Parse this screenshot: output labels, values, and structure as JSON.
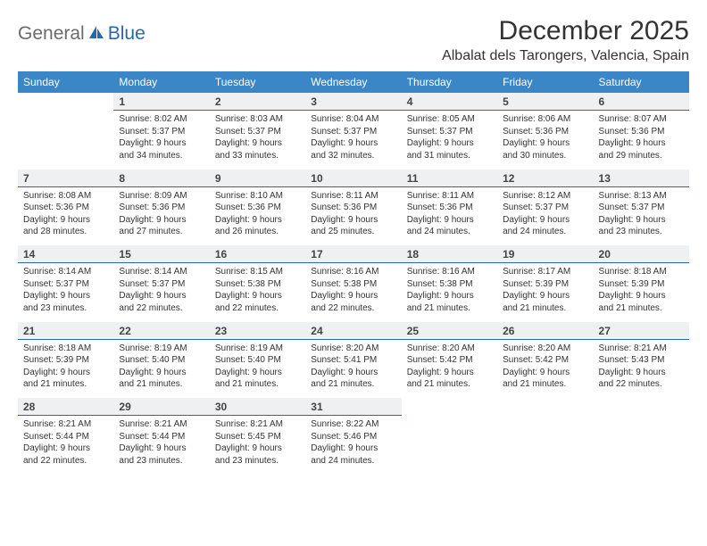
{
  "brand": {
    "part1": "General",
    "part2": "Blue"
  },
  "title": "December 2025",
  "location": "Albalat dels Tarongers, Valencia, Spain",
  "colors": {
    "header_bg": "#3b86c6",
    "header_text": "#ffffff",
    "daynum_bg": "#eef0f2",
    "daynum_border": "#2968a8",
    "logo_gray": "#6b6b6b",
    "logo_blue": "#2968a8",
    "page_bg": "#ffffff"
  },
  "weekdays": [
    "Sunday",
    "Monday",
    "Tuesday",
    "Wednesday",
    "Thursday",
    "Friday",
    "Saturday"
  ],
  "weeks": [
    {
      "nums": [
        "",
        "1",
        "2",
        "3",
        "4",
        "5",
        "6"
      ],
      "info": [
        {},
        {
          "sunrise": "Sunrise: 8:02 AM",
          "sunset": "Sunset: 5:37 PM",
          "dl1": "Daylight: 9 hours",
          "dl2": "and 34 minutes."
        },
        {
          "sunrise": "Sunrise: 8:03 AM",
          "sunset": "Sunset: 5:37 PM",
          "dl1": "Daylight: 9 hours",
          "dl2": "and 33 minutes."
        },
        {
          "sunrise": "Sunrise: 8:04 AM",
          "sunset": "Sunset: 5:37 PM",
          "dl1": "Daylight: 9 hours",
          "dl2": "and 32 minutes."
        },
        {
          "sunrise": "Sunrise: 8:05 AM",
          "sunset": "Sunset: 5:37 PM",
          "dl1": "Daylight: 9 hours",
          "dl2": "and 31 minutes."
        },
        {
          "sunrise": "Sunrise: 8:06 AM",
          "sunset": "Sunset: 5:36 PM",
          "dl1": "Daylight: 9 hours",
          "dl2": "and 30 minutes."
        },
        {
          "sunrise": "Sunrise: 8:07 AM",
          "sunset": "Sunset: 5:36 PM",
          "dl1": "Daylight: 9 hours",
          "dl2": "and 29 minutes."
        }
      ]
    },
    {
      "nums": [
        "7",
        "8",
        "9",
        "10",
        "11",
        "12",
        "13"
      ],
      "info": [
        {
          "sunrise": "Sunrise: 8:08 AM",
          "sunset": "Sunset: 5:36 PM",
          "dl1": "Daylight: 9 hours",
          "dl2": "and 28 minutes."
        },
        {
          "sunrise": "Sunrise: 8:09 AM",
          "sunset": "Sunset: 5:36 PM",
          "dl1": "Daylight: 9 hours",
          "dl2": "and 27 minutes."
        },
        {
          "sunrise": "Sunrise: 8:10 AM",
          "sunset": "Sunset: 5:36 PM",
          "dl1": "Daylight: 9 hours",
          "dl2": "and 26 minutes."
        },
        {
          "sunrise": "Sunrise: 8:11 AM",
          "sunset": "Sunset: 5:36 PM",
          "dl1": "Daylight: 9 hours",
          "dl2": "and 25 minutes."
        },
        {
          "sunrise": "Sunrise: 8:11 AM",
          "sunset": "Sunset: 5:36 PM",
          "dl1": "Daylight: 9 hours",
          "dl2": "and 24 minutes."
        },
        {
          "sunrise": "Sunrise: 8:12 AM",
          "sunset": "Sunset: 5:37 PM",
          "dl1": "Daylight: 9 hours",
          "dl2": "and 24 minutes."
        },
        {
          "sunrise": "Sunrise: 8:13 AM",
          "sunset": "Sunset: 5:37 PM",
          "dl1": "Daylight: 9 hours",
          "dl2": "and 23 minutes."
        }
      ]
    },
    {
      "nums": [
        "14",
        "15",
        "16",
        "17",
        "18",
        "19",
        "20"
      ],
      "info": [
        {
          "sunrise": "Sunrise: 8:14 AM",
          "sunset": "Sunset: 5:37 PM",
          "dl1": "Daylight: 9 hours",
          "dl2": "and 23 minutes."
        },
        {
          "sunrise": "Sunrise: 8:14 AM",
          "sunset": "Sunset: 5:37 PM",
          "dl1": "Daylight: 9 hours",
          "dl2": "and 22 minutes."
        },
        {
          "sunrise": "Sunrise: 8:15 AM",
          "sunset": "Sunset: 5:38 PM",
          "dl1": "Daylight: 9 hours",
          "dl2": "and 22 minutes."
        },
        {
          "sunrise": "Sunrise: 8:16 AM",
          "sunset": "Sunset: 5:38 PM",
          "dl1": "Daylight: 9 hours",
          "dl2": "and 22 minutes."
        },
        {
          "sunrise": "Sunrise: 8:16 AM",
          "sunset": "Sunset: 5:38 PM",
          "dl1": "Daylight: 9 hours",
          "dl2": "and 21 minutes."
        },
        {
          "sunrise": "Sunrise: 8:17 AM",
          "sunset": "Sunset: 5:39 PM",
          "dl1": "Daylight: 9 hours",
          "dl2": "and 21 minutes."
        },
        {
          "sunrise": "Sunrise: 8:18 AM",
          "sunset": "Sunset: 5:39 PM",
          "dl1": "Daylight: 9 hours",
          "dl2": "and 21 minutes."
        }
      ]
    },
    {
      "nums": [
        "21",
        "22",
        "23",
        "24",
        "25",
        "26",
        "27"
      ],
      "info": [
        {
          "sunrise": "Sunrise: 8:18 AM",
          "sunset": "Sunset: 5:39 PM",
          "dl1": "Daylight: 9 hours",
          "dl2": "and 21 minutes."
        },
        {
          "sunrise": "Sunrise: 8:19 AM",
          "sunset": "Sunset: 5:40 PM",
          "dl1": "Daylight: 9 hours",
          "dl2": "and 21 minutes."
        },
        {
          "sunrise": "Sunrise: 8:19 AM",
          "sunset": "Sunset: 5:40 PM",
          "dl1": "Daylight: 9 hours",
          "dl2": "and 21 minutes."
        },
        {
          "sunrise": "Sunrise: 8:20 AM",
          "sunset": "Sunset: 5:41 PM",
          "dl1": "Daylight: 9 hours",
          "dl2": "and 21 minutes."
        },
        {
          "sunrise": "Sunrise: 8:20 AM",
          "sunset": "Sunset: 5:42 PM",
          "dl1": "Daylight: 9 hours",
          "dl2": "and 21 minutes."
        },
        {
          "sunrise": "Sunrise: 8:20 AM",
          "sunset": "Sunset: 5:42 PM",
          "dl1": "Daylight: 9 hours",
          "dl2": "and 21 minutes."
        },
        {
          "sunrise": "Sunrise: 8:21 AM",
          "sunset": "Sunset: 5:43 PM",
          "dl1": "Daylight: 9 hours",
          "dl2": "and 22 minutes."
        }
      ]
    },
    {
      "nums": [
        "28",
        "29",
        "30",
        "31",
        "",
        "",
        ""
      ],
      "info": [
        {
          "sunrise": "Sunrise: 8:21 AM",
          "sunset": "Sunset: 5:44 PM",
          "dl1": "Daylight: 9 hours",
          "dl2": "and 22 minutes."
        },
        {
          "sunrise": "Sunrise: 8:21 AM",
          "sunset": "Sunset: 5:44 PM",
          "dl1": "Daylight: 9 hours",
          "dl2": "and 23 minutes."
        },
        {
          "sunrise": "Sunrise: 8:21 AM",
          "sunset": "Sunset: 5:45 PM",
          "dl1": "Daylight: 9 hours",
          "dl2": "and 23 minutes."
        },
        {
          "sunrise": "Sunrise: 8:22 AM",
          "sunset": "Sunset: 5:46 PM",
          "dl1": "Daylight: 9 hours",
          "dl2": "and 24 minutes."
        },
        {},
        {},
        {}
      ]
    }
  ]
}
